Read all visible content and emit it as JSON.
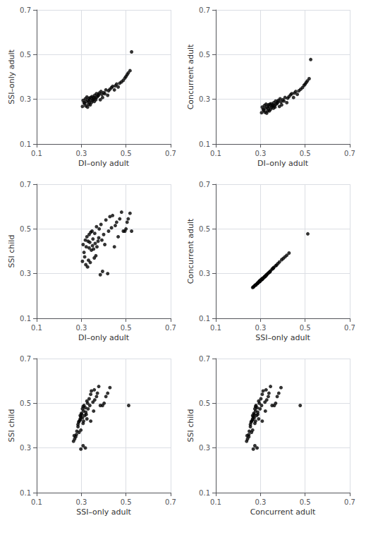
{
  "chart_data": [
    {
      "type": "scatter",
      "xlabel": "DI–only adult",
      "ylabel": "SSI–only adult",
      "x": [
        0.305,
        0.308,
        0.312,
        0.315,
        0.318,
        0.32,
        0.322,
        0.325,
        0.328,
        0.33,
        0.332,
        0.335,
        0.335,
        0.338,
        0.34,
        0.342,
        0.345,
        0.348,
        0.35,
        0.352,
        0.355,
        0.358,
        0.36,
        0.362,
        0.365,
        0.368,
        0.37,
        0.375,
        0.378,
        0.38,
        0.385,
        0.388,
        0.392,
        0.395,
        0.4,
        0.405,
        0.41,
        0.418,
        0.422,
        0.428,
        0.435,
        0.44,
        0.448,
        0.452,
        0.458,
        0.465,
        0.472,
        0.48,
        0.488,
        0.495,
        0.5,
        0.505,
        0.51,
        0.518,
        0.525
      ],
      "values": [
        0.268,
        0.295,
        0.285,
        0.28,
        0.302,
        0.27,
        0.29,
        0.31,
        0.265,
        0.295,
        0.278,
        0.305,
        0.288,
        0.298,
        0.275,
        0.308,
        0.285,
        0.312,
        0.295,
        0.3,
        0.308,
        0.29,
        0.318,
        0.305,
        0.298,
        0.325,
        0.31,
        0.315,
        0.32,
        0.328,
        0.298,
        0.335,
        0.322,
        0.308,
        0.33,
        0.325,
        0.342,
        0.318,
        0.338,
        0.345,
        0.352,
        0.358,
        0.342,
        0.36,
        0.368,
        0.355,
        0.372,
        0.378,
        0.385,
        0.395,
        0.402,
        0.41,
        0.418,
        0.428,
        0.512
      ],
      "xlim": [
        0.1,
        0.7
      ],
      "ylim": [
        0.1,
        0.7
      ],
      "xticks": [
        0.1,
        0.3,
        0.5,
        0.7
      ],
      "yticks": [
        0.1,
        0.3,
        0.5,
        0.7
      ],
      "grid": true,
      "color": "#000000"
    },
    {
      "type": "scatter",
      "xlabel": "DI–only adult",
      "ylabel": "Concurrent adult",
      "x": [
        0.305,
        0.308,
        0.312,
        0.315,
        0.318,
        0.32,
        0.322,
        0.325,
        0.328,
        0.33,
        0.332,
        0.335,
        0.335,
        0.338,
        0.34,
        0.342,
        0.345,
        0.348,
        0.35,
        0.352,
        0.355,
        0.358,
        0.36,
        0.362,
        0.365,
        0.368,
        0.37,
        0.375,
        0.378,
        0.38,
        0.385,
        0.388,
        0.392,
        0.395,
        0.4,
        0.405,
        0.41,
        0.418,
        0.422,
        0.428,
        0.435,
        0.44,
        0.448,
        0.452,
        0.458,
        0.465,
        0.472,
        0.48,
        0.488,
        0.495,
        0.5,
        0.505,
        0.51,
        0.518,
        0.525
      ],
      "values": [
        0.24,
        0.265,
        0.255,
        0.25,
        0.272,
        0.242,
        0.26,
        0.278,
        0.238,
        0.265,
        0.248,
        0.275,
        0.258,
        0.268,
        0.248,
        0.278,
        0.255,
        0.28,
        0.265,
        0.27,
        0.275,
        0.26,
        0.285,
        0.272,
        0.265,
        0.292,
        0.278,
        0.282,
        0.288,
        0.295,
        0.268,
        0.302,
        0.288,
        0.275,
        0.298,
        0.292,
        0.308,
        0.285,
        0.305,
        0.312,
        0.32,
        0.325,
        0.308,
        0.328,
        0.335,
        0.322,
        0.338,
        0.345,
        0.352,
        0.362,
        0.368,
        0.375,
        0.382,
        0.392,
        0.478
      ],
      "xlim": [
        0.1,
        0.7
      ],
      "ylim": [
        0.1,
        0.7
      ],
      "xticks": [
        0.1,
        0.3,
        0.5,
        0.7
      ],
      "yticks": [
        0.1,
        0.3,
        0.5,
        0.7
      ],
      "grid": true,
      "color": "#000000"
    },
    {
      "type": "scatter",
      "xlabel": "DI–only adult",
      "ylabel": "SSI child",
      "x": [
        0.305,
        0.308,
        0.312,
        0.315,
        0.318,
        0.32,
        0.322,
        0.325,
        0.328,
        0.33,
        0.332,
        0.335,
        0.335,
        0.338,
        0.34,
        0.342,
        0.345,
        0.348,
        0.35,
        0.352,
        0.355,
        0.358,
        0.36,
        0.362,
        0.365,
        0.368,
        0.37,
        0.375,
        0.378,
        0.38,
        0.385,
        0.388,
        0.392,
        0.395,
        0.4,
        0.405,
        0.41,
        0.418,
        0.422,
        0.428,
        0.435,
        0.44,
        0.448,
        0.452,
        0.458,
        0.465,
        0.472,
        0.48,
        0.488,
        0.495,
        0.5,
        0.505,
        0.51,
        0.518,
        0.525
      ],
      "values": [
        0.355,
        0.43,
        0.395,
        0.375,
        0.45,
        0.34,
        0.42,
        0.465,
        0.33,
        0.445,
        0.36,
        0.475,
        0.415,
        0.44,
        0.35,
        0.485,
        0.405,
        0.49,
        0.425,
        0.455,
        0.41,
        0.37,
        0.48,
        0.435,
        0.38,
        0.51,
        0.42,
        0.445,
        0.46,
        0.5,
        0.295,
        0.52,
        0.45,
        0.31,
        0.475,
        0.43,
        0.54,
        0.3,
        0.49,
        0.555,
        0.505,
        0.56,
        0.42,
        0.515,
        0.53,
        0.465,
        0.545,
        0.575,
        0.49,
        0.49,
        0.5,
        0.53,
        0.545,
        0.57,
        0.49
      ],
      "xlim": [
        0.1,
        0.7
      ],
      "ylim": [
        0.1,
        0.7
      ],
      "xticks": [
        0.1,
        0.3,
        0.5,
        0.7
      ],
      "yticks": [
        0.1,
        0.3,
        0.5,
        0.7
      ],
      "grid": true,
      "color": "#000000"
    },
    {
      "type": "scatter",
      "xlabel": "SSI–only adult",
      "ylabel": "Concurrent adult",
      "x": [
        0.268,
        0.295,
        0.285,
        0.28,
        0.302,
        0.27,
        0.29,
        0.31,
        0.265,
        0.295,
        0.278,
        0.305,
        0.288,
        0.298,
        0.275,
        0.308,
        0.285,
        0.312,
        0.295,
        0.3,
        0.308,
        0.29,
        0.318,
        0.305,
        0.298,
        0.325,
        0.31,
        0.315,
        0.32,
        0.328,
        0.298,
        0.335,
        0.322,
        0.308,
        0.33,
        0.325,
        0.342,
        0.318,
        0.338,
        0.345,
        0.352,
        0.358,
        0.342,
        0.36,
        0.368,
        0.355,
        0.372,
        0.378,
        0.385,
        0.395,
        0.402,
        0.41,
        0.418,
        0.428,
        0.512
      ],
      "values": [
        0.24,
        0.265,
        0.255,
        0.25,
        0.272,
        0.242,
        0.26,
        0.278,
        0.238,
        0.265,
        0.248,
        0.275,
        0.258,
        0.268,
        0.248,
        0.278,
        0.255,
        0.28,
        0.265,
        0.27,
        0.275,
        0.26,
        0.285,
        0.272,
        0.265,
        0.292,
        0.278,
        0.282,
        0.288,
        0.295,
        0.268,
        0.302,
        0.288,
        0.275,
        0.298,
        0.292,
        0.308,
        0.285,
        0.305,
        0.312,
        0.32,
        0.325,
        0.308,
        0.328,
        0.335,
        0.322,
        0.338,
        0.345,
        0.352,
        0.362,
        0.368,
        0.375,
        0.382,
        0.392,
        0.478
      ],
      "xlim": [
        0.1,
        0.7
      ],
      "ylim": [
        0.1,
        0.7
      ],
      "xticks": [
        0.1,
        0.3,
        0.5,
        0.7
      ],
      "yticks": [
        0.1,
        0.3,
        0.5,
        0.7
      ],
      "grid": true,
      "color": "#000000"
    },
    {
      "type": "scatter",
      "xlabel": "SSI–only adult",
      "ylabel": "SSI child",
      "x": [
        0.268,
        0.295,
        0.285,
        0.28,
        0.302,
        0.27,
        0.29,
        0.31,
        0.265,
        0.295,
        0.278,
        0.305,
        0.288,
        0.298,
        0.275,
        0.308,
        0.285,
        0.312,
        0.295,
        0.3,
        0.308,
        0.29,
        0.318,
        0.305,
        0.298,
        0.325,
        0.31,
        0.315,
        0.32,
        0.328,
        0.298,
        0.335,
        0.322,
        0.308,
        0.33,
        0.325,
        0.342,
        0.318,
        0.338,
        0.345,
        0.352,
        0.358,
        0.342,
        0.36,
        0.368,
        0.355,
        0.372,
        0.378,
        0.385,
        0.395,
        0.402,
        0.41,
        0.418,
        0.428,
        0.512
      ],
      "values": [
        0.355,
        0.43,
        0.395,
        0.375,
        0.45,
        0.34,
        0.42,
        0.465,
        0.33,
        0.445,
        0.36,
        0.475,
        0.415,
        0.44,
        0.35,
        0.485,
        0.405,
        0.49,
        0.425,
        0.455,
        0.41,
        0.37,
        0.48,
        0.435,
        0.38,
        0.51,
        0.42,
        0.445,
        0.46,
        0.5,
        0.295,
        0.52,
        0.45,
        0.31,
        0.475,
        0.43,
        0.54,
        0.3,
        0.49,
        0.555,
        0.505,
        0.56,
        0.42,
        0.515,
        0.53,
        0.465,
        0.545,
        0.575,
        0.49,
        0.49,
        0.5,
        0.53,
        0.545,
        0.57,
        0.49
      ],
      "xlim": [
        0.1,
        0.7
      ],
      "ylim": [
        0.1,
        0.7
      ],
      "xticks": [
        0.1,
        0.3,
        0.5,
        0.7
      ],
      "yticks": [
        0.1,
        0.3,
        0.5,
        0.7
      ],
      "grid": true,
      "color": "#000000"
    },
    {
      "type": "scatter",
      "xlabel": "Concurrent adult",
      "ylabel": "SSI child",
      "x": [
        0.24,
        0.265,
        0.255,
        0.25,
        0.272,
        0.242,
        0.26,
        0.278,
        0.238,
        0.265,
        0.248,
        0.275,
        0.258,
        0.268,
        0.248,
        0.278,
        0.255,
        0.28,
        0.265,
        0.27,
        0.275,
        0.26,
        0.285,
        0.272,
        0.265,
        0.292,
        0.278,
        0.282,
        0.288,
        0.295,
        0.268,
        0.302,
        0.288,
        0.275,
        0.298,
        0.292,
        0.308,
        0.285,
        0.305,
        0.312,
        0.32,
        0.325,
        0.308,
        0.328,
        0.335,
        0.322,
        0.338,
        0.345,
        0.352,
        0.362,
        0.368,
        0.375,
        0.382,
        0.392,
        0.478
      ],
      "values": [
        0.355,
        0.43,
        0.395,
        0.375,
        0.45,
        0.34,
        0.42,
        0.465,
        0.33,
        0.445,
        0.36,
        0.475,
        0.415,
        0.44,
        0.35,
        0.485,
        0.405,
        0.49,
        0.425,
        0.455,
        0.41,
        0.37,
        0.48,
        0.435,
        0.38,
        0.51,
        0.42,
        0.445,
        0.46,
        0.5,
        0.295,
        0.52,
        0.45,
        0.31,
        0.475,
        0.43,
        0.54,
        0.3,
        0.49,
        0.555,
        0.505,
        0.56,
        0.42,
        0.515,
        0.53,
        0.465,
        0.545,
        0.575,
        0.49,
        0.49,
        0.5,
        0.53,
        0.545,
        0.57,
        0.49
      ],
      "xlim": [
        0.1,
        0.7
      ],
      "ylim": [
        0.1,
        0.7
      ],
      "xticks": [
        0.1,
        0.3,
        0.5,
        0.7
      ],
      "yticks": [
        0.1,
        0.3,
        0.5,
        0.7
      ],
      "grid": true,
      "color": "#000000"
    }
  ]
}
